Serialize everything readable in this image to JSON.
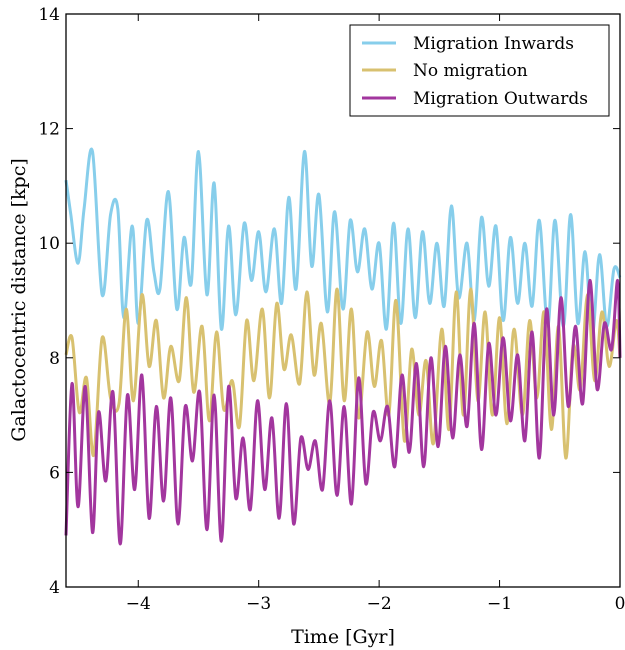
{
  "chart_data": {
    "type": "line",
    "title": "",
    "xlabel": "Time [Gyr]",
    "ylabel": "Galactocentric distance [kpc]",
    "xlim": [
      -4.6,
      0
    ],
    "ylim": [
      4,
      14
    ],
    "xticks": [
      -4,
      -3,
      -2,
      -1,
      0
    ],
    "xtick_labels": [
      "−4",
      "−3",
      "−2",
      "−1",
      "0"
    ],
    "yticks": [
      4,
      6,
      8,
      10,
      12,
      14
    ],
    "ytick_labels": [
      "4",
      "6",
      "8",
      "10",
      "12",
      "14"
    ],
    "grid": false,
    "legend_position": "top-right",
    "series": [
      {
        "name": "Migration Inwards",
        "color": "#87ceeb",
        "x": [
          -4.6,
          -4.56,
          -4.5,
          -4.45,
          -4.38,
          -4.3,
          -4.23,
          -4.17,
          -4.12,
          -4.05,
          -4.0,
          -3.93,
          -3.87,
          -3.82,
          -3.75,
          -3.68,
          -3.62,
          -3.56,
          -3.5,
          -3.43,
          -3.37,
          -3.31,
          -3.25,
          -3.19,
          -3.12,
          -3.06,
          -3.0,
          -2.94,
          -2.87,
          -2.81,
          -2.75,
          -2.69,
          -2.62,
          -2.56,
          -2.5,
          -2.43,
          -2.37,
          -2.3,
          -2.24,
          -2.18,
          -2.12,
          -2.06,
          -2.0,
          -1.94,
          -1.88,
          -1.82,
          -1.76,
          -1.7,
          -1.64,
          -1.58,
          -1.52,
          -1.46,
          -1.4,
          -1.34,
          -1.27,
          -1.21,
          -1.15,
          -1.09,
          -1.03,
          -0.97,
          -0.91,
          -0.85,
          -0.79,
          -0.73,
          -0.67,
          -0.6,
          -0.54,
          -0.47,
          -0.41,
          -0.35,
          -0.29,
          -0.23,
          -0.17,
          -0.11,
          -0.05,
          0.0
        ],
        "y": [
          11.1,
          10.5,
          9.65,
          10.6,
          11.6,
          9.1,
          10.5,
          10.6,
          8.7,
          10.3,
          8.6,
          10.4,
          9.5,
          9.2,
          10.9,
          8.85,
          10.1,
          9.3,
          11.6,
          9.1,
          11.05,
          8.5,
          10.3,
          8.75,
          10.35,
          9.35,
          10.2,
          9.15,
          10.25,
          8.95,
          10.8,
          9.2,
          11.6,
          9.6,
          10.85,
          8.8,
          10.55,
          8.85,
          10.4,
          9.5,
          10.25,
          9.2,
          10.0,
          8.5,
          10.35,
          8.6,
          10.25,
          8.7,
          10.2,
          8.95,
          10.0,
          8.9,
          10.65,
          9.05,
          10.0,
          8.65,
          10.45,
          9.25,
          10.3,
          8.65,
          10.1,
          8.95,
          10.0,
          8.9,
          10.4,
          8.55,
          10.4,
          8.55,
          10.5,
          8.6,
          9.85,
          8.4,
          9.8,
          8.55,
          9.55,
          9.4
        ]
      },
      {
        "name": "No migration",
        "color": "#d8c170",
        "x": [
          -4.6,
          -4.55,
          -4.49,
          -4.43,
          -4.37,
          -4.3,
          -4.23,
          -4.16,
          -4.1,
          -4.04,
          -3.97,
          -3.91,
          -3.85,
          -3.79,
          -3.73,
          -3.66,
          -3.6,
          -3.54,
          -3.47,
          -3.41,
          -3.35,
          -3.29,
          -3.22,
          -3.16,
          -3.1,
          -3.04,
          -2.97,
          -2.91,
          -2.85,
          -2.79,
          -2.73,
          -2.66,
          -2.6,
          -2.54,
          -2.48,
          -2.41,
          -2.35,
          -2.29,
          -2.23,
          -2.17,
          -2.1,
          -2.04,
          -1.98,
          -1.92,
          -1.86,
          -1.79,
          -1.73,
          -1.67,
          -1.61,
          -1.55,
          -1.48,
          -1.42,
          -1.36,
          -1.3,
          -1.24,
          -1.18,
          -1.12,
          -1.06,
          -1.0,
          -0.94,
          -0.88,
          -0.81,
          -0.75,
          -0.69,
          -0.63,
          -0.57,
          -0.51,
          -0.45,
          -0.39,
          -0.33,
          -0.27,
          -0.21,
          -0.15,
          -0.09,
          -0.03,
          0.0
        ],
        "y": [
          8.05,
          8.35,
          7.05,
          7.65,
          6.3,
          8.35,
          7.3,
          7.2,
          8.85,
          7.25,
          9.1,
          7.85,
          8.65,
          7.3,
          8.2,
          7.6,
          9.05,
          7.4,
          8.55,
          6.9,
          8.45,
          7.1,
          7.6,
          6.8,
          8.65,
          7.6,
          8.85,
          7.3,
          8.95,
          7.8,
          8.4,
          7.55,
          9.15,
          7.7,
          8.6,
          7.2,
          9.2,
          7.25,
          8.85,
          6.95,
          8.45,
          7.5,
          8.3,
          7.0,
          9.0,
          6.55,
          8.15,
          7.0,
          7.95,
          6.5,
          8.5,
          6.75,
          9.15,
          7.0,
          9.2,
          7.25,
          8.8,
          7.0,
          8.7,
          6.85,
          8.5,
          7.0,
          8.65,
          7.3,
          8.8,
          6.75,
          8.55,
          6.25,
          8.2,
          7.45,
          9.1,
          7.6,
          8.8,
          7.85,
          8.65,
          8.0
        ]
      },
      {
        "name": "Migration Outwards",
        "color": "#a2369e",
        "x": [
          -4.6,
          -4.55,
          -4.5,
          -4.44,
          -4.38,
          -4.33,
          -4.27,
          -4.21,
          -4.15,
          -4.09,
          -4.03,
          -3.97,
          -3.91,
          -3.85,
          -3.79,
          -3.73,
          -3.67,
          -3.61,
          -3.55,
          -3.49,
          -3.43,
          -3.37,
          -3.31,
          -3.25,
          -3.19,
          -3.13,
          -3.07,
          -3.01,
          -2.95,
          -2.89,
          -2.83,
          -2.77,
          -2.71,
          -2.65,
          -2.59,
          -2.53,
          -2.47,
          -2.41,
          -2.35,
          -2.29,
          -2.23,
          -2.17,
          -2.11,
          -2.05,
          -1.99,
          -1.93,
          -1.87,
          -1.81,
          -1.75,
          -1.69,
          -1.63,
          -1.57,
          -1.51,
          -1.45,
          -1.39,
          -1.33,
          -1.27,
          -1.21,
          -1.15,
          -1.09,
          -1.03,
          -0.97,
          -0.91,
          -0.85,
          -0.79,
          -0.73,
          -0.67,
          -0.61,
          -0.55,
          -0.49,
          -0.43,
          -0.37,
          -0.31,
          -0.25,
          -0.19,
          -0.13,
          -0.07,
          -0.02,
          0.0
        ],
        "y": [
          4.9,
          7.55,
          5.4,
          7.5,
          4.95,
          7.05,
          5.85,
          7.4,
          4.75,
          7.35,
          5.7,
          7.7,
          5.2,
          7.15,
          5.5,
          7.3,
          5.1,
          7.15,
          6.2,
          7.4,
          5.0,
          7.35,
          4.8,
          7.5,
          5.55,
          6.6,
          5.35,
          7.25,
          5.7,
          6.95,
          5.2,
          7.2,
          5.1,
          6.6,
          6.05,
          6.55,
          5.7,
          7.25,
          5.6,
          7.15,
          5.45,
          7.65,
          5.8,
          7.05,
          6.55,
          7.15,
          6.1,
          7.7,
          6.35,
          7.9,
          6.1,
          8.0,
          6.45,
          8.2,
          6.6,
          8.05,
          6.8,
          8.6,
          6.4,
          8.25,
          7.0,
          8.35,
          6.9,
          8.05,
          6.55,
          8.45,
          6.25,
          8.85,
          7.0,
          9.05,
          7.15,
          8.55,
          7.2,
          9.35,
          7.45,
          8.6,
          8.15,
          9.35,
          8.0
        ]
      }
    ]
  }
}
